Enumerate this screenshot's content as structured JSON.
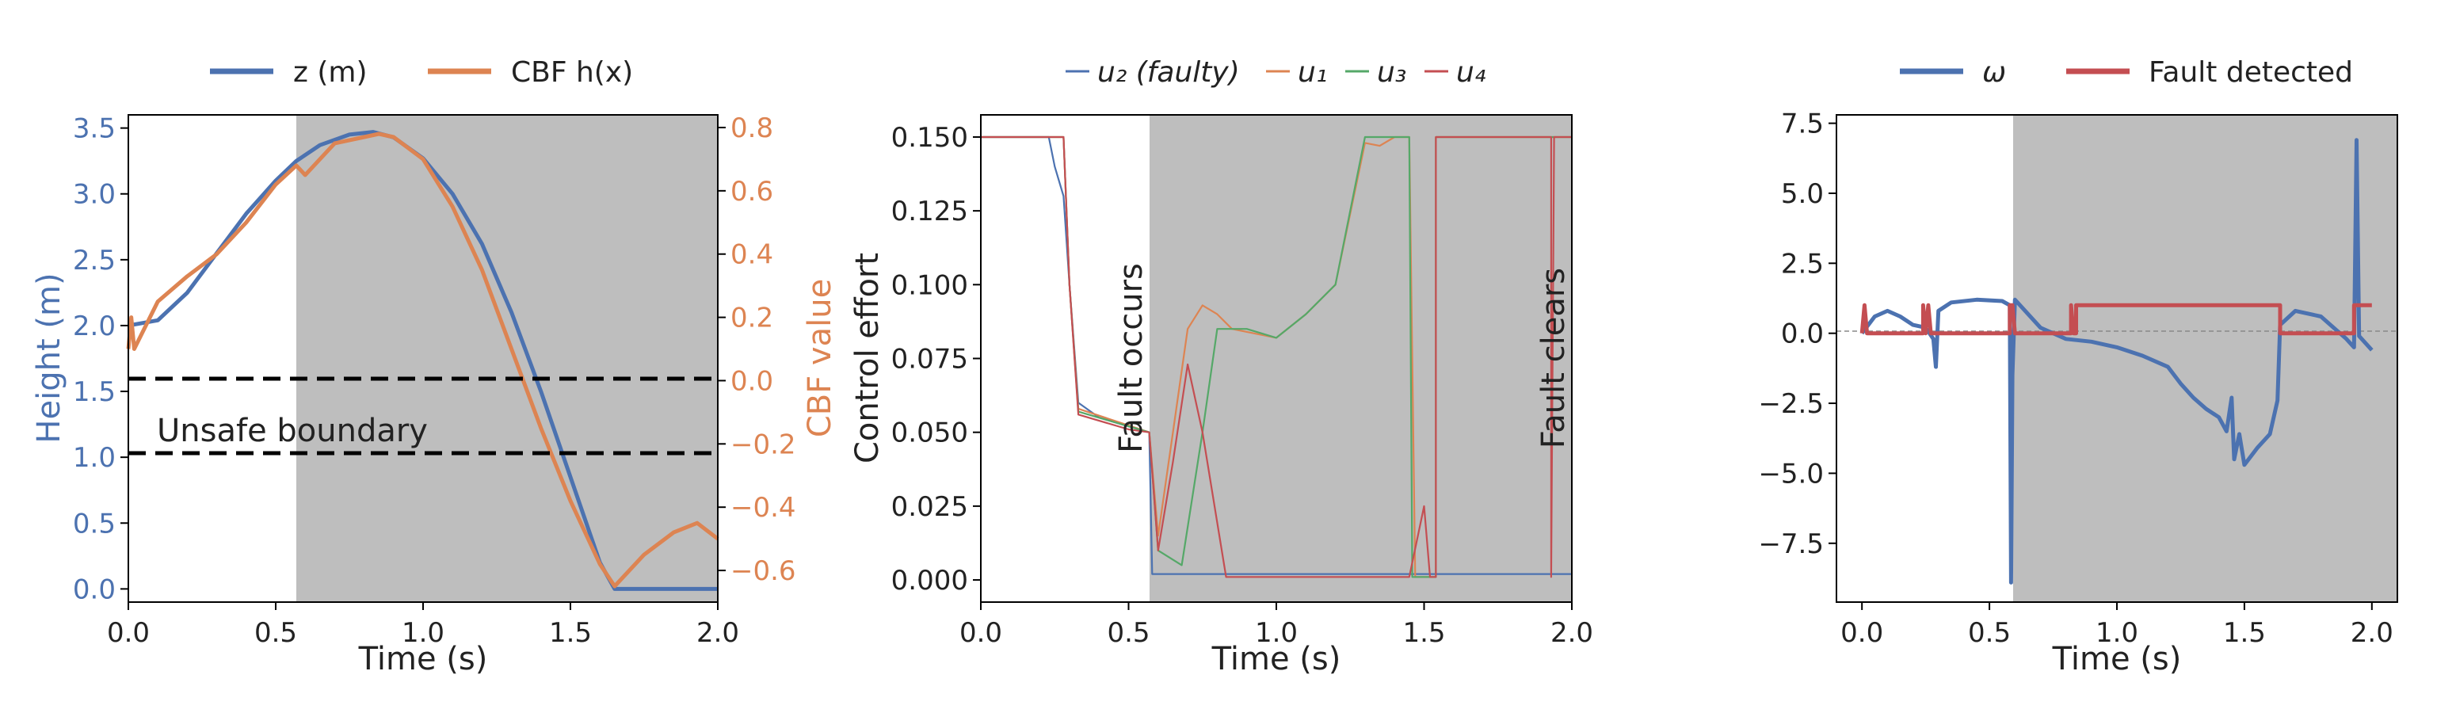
{
  "colors": {
    "blue": "#4c72b0",
    "orange": "#dd8452",
    "green": "#55a868",
    "red": "#c44e52",
    "shade": "#bebebe",
    "black": "#000000"
  },
  "chart_data": [
    {
      "type": "line",
      "xlabel": "Time (s)",
      "ylabel": "Height (m)",
      "ylabel_right": "CBF value",
      "xlim": [
        0,
        2
      ],
      "ylim": [
        -0.1,
        3.6
      ],
      "ylim_right": [
        -0.7,
        0.84
      ],
      "xticks": [
        "0.0",
        "0.5",
        "1.0",
        "1.5",
        "2.0"
      ],
      "yticks": [
        "0.0",
        "0.5",
        "1.0",
        "1.5",
        "2.0",
        "2.5",
        "3.0",
        "3.5"
      ],
      "yticks_right": [
        "−0.6",
        "−0.4",
        "−0.2",
        "0.0",
        "0.2",
        "0.4",
        "0.6",
        "0.8"
      ],
      "fault_window": [
        0.57,
        2.0
      ],
      "hlines": [
        1.0,
        1.58
      ],
      "annotation": "Unsafe boundary",
      "legend": [
        "z (m)",
        "CBF h(x)"
      ],
      "legend_position": "top",
      "series": [
        {
          "name": "z (m)",
          "axis": "left",
          "color": "blue",
          "points": [
            [
              0,
              2.0
            ],
            [
              0.1,
              2.04
            ],
            [
              0.2,
              2.25
            ],
            [
              0.3,
              2.55
            ],
            [
              0.4,
              2.85
            ],
            [
              0.5,
              3.1
            ],
            [
              0.57,
              3.25
            ],
            [
              0.65,
              3.37
            ],
            [
              0.75,
              3.45
            ],
            [
              0.83,
              3.47
            ],
            [
              0.9,
              3.43
            ],
            [
              1.0,
              3.27
            ],
            [
              1.1,
              3.0
            ],
            [
              1.2,
              2.62
            ],
            [
              1.3,
              2.1
            ],
            [
              1.4,
              1.5
            ],
            [
              1.5,
              0.85
            ],
            [
              1.6,
              0.2
            ],
            [
              1.65,
              0.0
            ],
            [
              2.0,
              0.0
            ]
          ]
        },
        {
          "name": "CBF h(x)",
          "axis": "right",
          "color": "orange",
          "points": [
            [
              0,
              0.1
            ],
            [
              0.01,
              0.2
            ],
            [
              0.02,
              0.1
            ],
            [
              0.1,
              0.25
            ],
            [
              0.2,
              0.33
            ],
            [
              0.3,
              0.4
            ],
            [
              0.4,
              0.5
            ],
            [
              0.5,
              0.62
            ],
            [
              0.57,
              0.68
            ],
            [
              0.6,
              0.65
            ],
            [
              0.7,
              0.75
            ],
            [
              0.8,
              0.77
            ],
            [
              0.85,
              0.78
            ],
            [
              0.9,
              0.77
            ],
            [
              1.0,
              0.7
            ],
            [
              1.1,
              0.55
            ],
            [
              1.2,
              0.35
            ],
            [
              1.3,
              0.1
            ],
            [
              1.4,
              -0.15
            ],
            [
              1.5,
              -0.38
            ],
            [
              1.6,
              -0.58
            ],
            [
              1.65,
              -0.65
            ],
            [
              1.75,
              -0.55
            ],
            [
              1.85,
              -0.48
            ],
            [
              1.93,
              -0.45
            ],
            [
              2.0,
              -0.5
            ]
          ]
        }
      ]
    },
    {
      "type": "line",
      "xlabel": "Time (s)",
      "ylabel": "Control effort",
      "xlim": [
        0,
        2
      ],
      "ylim": [
        -0.0075,
        0.1575
      ],
      "xticks": [
        "0.0",
        "0.5",
        "1.0",
        "1.5",
        "2.0"
      ],
      "yticks": [
        "0.000",
        "0.025",
        "0.050",
        "0.075",
        "0.100",
        "0.125",
        "0.150"
      ],
      "fault_window": [
        0.57,
        2.0
      ],
      "annotations": [
        "Fault occurs",
        "Fault clears"
      ],
      "legend": [
        "u₂ (faulty)",
        "u₁",
        "u₃",
        "u₄"
      ],
      "legend_position": "top",
      "series": [
        {
          "name": "u₂ (faulty)",
          "color": "blue",
          "points": [
            [
              0,
              0.15
            ],
            [
              0.23,
              0.15
            ],
            [
              0.25,
              0.14
            ],
            [
              0.28,
              0.13
            ],
            [
              0.3,
              0.1
            ],
            [
              0.33,
              0.06
            ],
            [
              0.4,
              0.055
            ],
            [
              0.5,
              0.052
            ],
            [
              0.57,
              0.05
            ],
            [
              0.58,
              0.002
            ],
            [
              2.0,
              0.002
            ]
          ]
        },
        {
          "name": "u₁",
          "color": "orange",
          "points": [
            [
              0,
              0.15
            ],
            [
              0.28,
              0.15
            ],
            [
              0.3,
              0.1
            ],
            [
              0.33,
              0.058
            ],
            [
              0.45,
              0.054
            ],
            [
              0.57,
              0.05
            ],
            [
              0.6,
              0.015
            ],
            [
              0.65,
              0.05
            ],
            [
              0.7,
              0.085
            ],
            [
              0.75,
              0.093
            ],
            [
              0.8,
              0.09
            ],
            [
              0.85,
              0.085
            ],
            [
              1.0,
              0.082
            ],
            [
              1.1,
              0.09
            ],
            [
              1.2,
              0.1
            ],
            [
              1.3,
              0.148
            ],
            [
              1.35,
              0.147
            ],
            [
              1.4,
              0.15
            ],
            [
              1.45,
              0.15
            ],
            [
              1.47,
              0.001
            ],
            [
              1.54,
              0.001
            ],
            [
              1.54,
              0.15
            ],
            [
              2.0,
              0.15
            ]
          ]
        },
        {
          "name": "u₃",
          "color": "green",
          "points": [
            [
              0,
              0.15
            ],
            [
              0.28,
              0.15
            ],
            [
              0.3,
              0.1
            ],
            [
              0.33,
              0.057
            ],
            [
              0.5,
              0.052
            ],
            [
              0.57,
              0.05
            ],
            [
              0.6,
              0.01
            ],
            [
              0.68,
              0.005
            ],
            [
              0.75,
              0.05
            ],
            [
              0.8,
              0.085
            ],
            [
              0.9,
              0.085
            ],
            [
              1.0,
              0.082
            ],
            [
              1.1,
              0.09
            ],
            [
              1.2,
              0.1
            ],
            [
              1.3,
              0.15
            ],
            [
              1.45,
              0.15
            ],
            [
              1.46,
              0.001
            ],
            [
              1.54,
              0.001
            ],
            [
              1.54,
              0.15
            ],
            [
              2.0,
              0.15
            ]
          ]
        },
        {
          "name": "u₄",
          "color": "red",
          "points": [
            [
              0,
              0.15
            ],
            [
              0.28,
              0.15
            ],
            [
              0.3,
              0.1
            ],
            [
              0.33,
              0.056
            ],
            [
              0.5,
              0.051
            ],
            [
              0.57,
              0.05
            ],
            [
              0.6,
              0.01
            ],
            [
              0.65,
              0.04
            ],
            [
              0.7,
              0.073
            ],
            [
              0.75,
              0.05
            ],
            [
              0.83,
              0.001
            ],
            [
              1.45,
              0.001
            ],
            [
              1.5,
              0.025
            ],
            [
              1.52,
              0.001
            ],
            [
              1.54,
              0.001
            ],
            [
              1.54,
              0.15
            ],
            [
              1.93,
              0.15
            ],
            [
              1.93,
              0.001
            ],
            [
              1.94,
              0.15
            ],
            [
              2.0,
              0.15
            ]
          ]
        }
      ]
    },
    {
      "type": "line",
      "xlabel": "Time (s)",
      "xlim": [
        -0.1,
        2.1
      ],
      "ylim": [
        -9.6,
        7.8
      ],
      "xticks": [
        "0.0",
        "0.5",
        "1.0",
        "1.5",
        "2.0"
      ],
      "yticks": [
        "−7.5",
        "−5.0",
        "−2.5",
        "0.0",
        "2.5",
        "5.0",
        "7.5"
      ],
      "fault_window": [
        0.57,
        2.0
      ],
      "legend": [
        "ω",
        "Fault detected"
      ],
      "legend_position": "top",
      "series": [
        {
          "name": "ω",
          "color": "blue",
          "points": [
            [
              0,
              0
            ],
            [
              0.05,
              0.6
            ],
            [
              0.1,
              0.8
            ],
            [
              0.15,
              0.6
            ],
            [
              0.2,
              0.3
            ],
            [
              0.25,
              0.2
            ],
            [
              0.28,
              -0.2
            ],
            [
              0.29,
              -1.2
            ],
            [
              0.3,
              0.8
            ],
            [
              0.35,
              1.1
            ],
            [
              0.45,
              1.2
            ],
            [
              0.55,
              1.15
            ],
            [
              0.58,
              1.0
            ],
            [
              0.585,
              -8.9
            ],
            [
              0.59,
              -1.5
            ],
            [
              0.6,
              1.2
            ],
            [
              0.65,
              0.7
            ],
            [
              0.7,
              0.2
            ],
            [
              0.8,
              -0.2
            ],
            [
              0.9,
              -0.3
            ],
            [
              1.0,
              -0.5
            ],
            [
              1.1,
              -0.8
            ],
            [
              1.2,
              -1.2
            ],
            [
              1.25,
              -1.8
            ],
            [
              1.3,
              -2.3
            ],
            [
              1.35,
              -2.7
            ],
            [
              1.4,
              -3.0
            ],
            [
              1.43,
              -3.5
            ],
            [
              1.45,
              -2.3
            ],
            [
              1.46,
              -4.5
            ],
            [
              1.48,
              -3.6
            ],
            [
              1.5,
              -4.7
            ],
            [
              1.55,
              -4.1
            ],
            [
              1.6,
              -3.6
            ],
            [
              1.63,
              -2.4
            ],
            [
              1.64,
              0.3
            ],
            [
              1.7,
              0.8
            ],
            [
              1.8,
              0.6
            ],
            [
              1.85,
              0.2
            ],
            [
              1.9,
              -0.2
            ],
            [
              1.93,
              -0.5
            ],
            [
              1.94,
              6.9
            ],
            [
              1.95,
              -0.1
            ],
            [
              2.0,
              -0.6
            ]
          ]
        },
        {
          "name": "Fault detected",
          "color": "red",
          "points": [
            [
              0,
              0
            ],
            [
              0.01,
              1
            ],
            [
              0.02,
              0
            ],
            [
              0.24,
              0
            ],
            [
              0.24,
              1
            ],
            [
              0.25,
              0
            ],
            [
              0.26,
              1
            ],
            [
              0.27,
              0
            ],
            [
              0.58,
              0
            ],
            [
              0.58,
              1
            ],
            [
              0.59,
              1
            ],
            [
              0.6,
              0
            ],
            [
              0.82,
              0
            ],
            [
              0.82,
              1
            ],
            [
              0.83,
              0
            ],
            [
              0.84,
              0
            ],
            [
              0.84,
              1
            ],
            [
              1.64,
              1
            ],
            [
              1.64,
              0
            ],
            [
              1.93,
              0
            ],
            [
              1.93,
              1
            ],
            [
              2.0,
              1
            ]
          ]
        }
      ]
    }
  ]
}
